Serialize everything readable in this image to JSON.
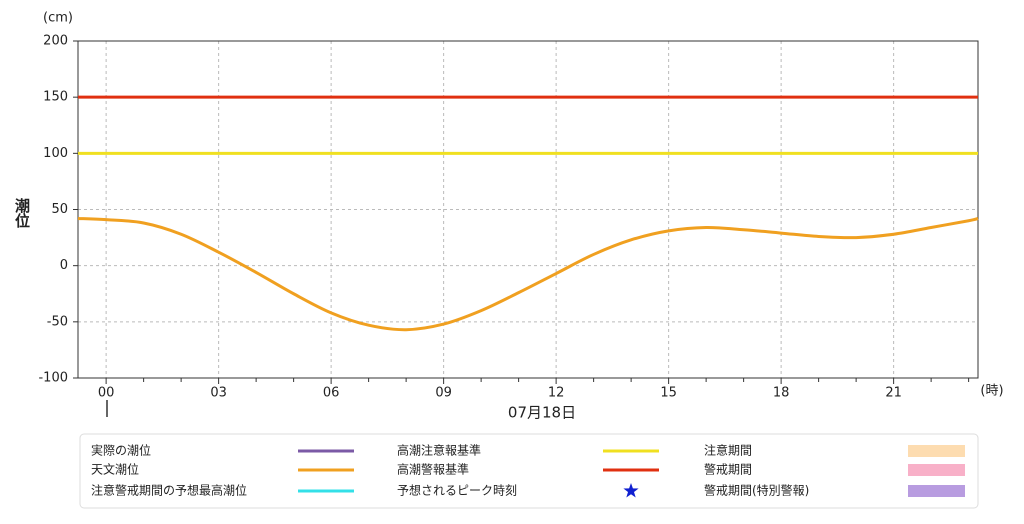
{
  "chart_data": {
    "type": "line",
    "y_unit": "(cm)",
    "ylabel": "潮位",
    "x_unit": "(時)",
    "date_label": "07月18日",
    "xlim": [
      -0.75,
      23.25
    ],
    "xticks": [
      {
        "value": 0,
        "label": "00"
      },
      {
        "value": 3,
        "label": "03"
      },
      {
        "value": 6,
        "label": "06"
      },
      {
        "value": 9,
        "label": "09"
      },
      {
        "value": 12,
        "label": "12"
      },
      {
        "value": 15,
        "label": "15"
      },
      {
        "value": 18,
        "label": "18"
      },
      {
        "value": 21,
        "label": "21"
      }
    ],
    "xticks_minor": [
      1,
      2,
      4,
      5,
      7,
      8,
      10,
      11,
      13,
      14,
      16,
      17,
      19,
      20,
      22,
      23
    ],
    "ylim": [
      -100,
      200
    ],
    "yticks": [
      -100,
      -50,
      0,
      50,
      100,
      150,
      200
    ],
    "grid": true,
    "series": [
      {
        "name": "天文潮位",
        "color": "#f0a020",
        "x": [
          -0.75,
          0,
          1,
          2,
          3,
          4,
          5,
          6,
          7,
          8,
          9,
          10,
          11,
          12,
          13,
          14,
          15,
          16,
          17,
          18,
          19,
          20,
          21,
          22,
          23,
          23.25
        ],
        "values": [
          42,
          41,
          38,
          28,
          12,
          -6,
          -25,
          -42,
          -53,
          -57,
          -52,
          -40,
          -24,
          -7,
          10,
          23,
          31,
          34,
          32,
          29,
          26,
          25,
          28,
          34,
          40,
          42
        ]
      },
      {
        "name": "高潮注意報基準",
        "color": "#f0e020",
        "x": [
          -0.75,
          23.25
        ],
        "values": [
          100,
          100
        ]
      },
      {
        "name": "高潮警報基準",
        "color": "#e03010",
        "x": [
          -0.75,
          23.25
        ],
        "values": [
          150,
          150
        ]
      }
    ],
    "legend": [
      {
        "name": "実際の潮位",
        "color": "#7b5aa6",
        "symbol": "line"
      },
      {
        "name": "天文潮位",
        "color": "#f0a020",
        "symbol": "line"
      },
      {
        "name": "注意警戒期間の予想最高潮位",
        "color": "#33e0e8",
        "symbol": "line"
      },
      {
        "name": "高潮注意報基準",
        "color": "#f0e020",
        "symbol": "line"
      },
      {
        "name": "高潮警報基準",
        "color": "#e03010",
        "symbol": "line"
      },
      {
        "name": "予想されるピーク時刻",
        "color": "#1020d0",
        "symbol": "star"
      },
      {
        "name": "注意期間",
        "color": "#fddcb0",
        "symbol": "rect"
      },
      {
        "name": "警戒期間",
        "color": "#f8b0c8",
        "symbol": "rect"
      },
      {
        "name": "警戒期間(特別警報)",
        "color": "#b89ce0",
        "symbol": "rect"
      }
    ]
  }
}
